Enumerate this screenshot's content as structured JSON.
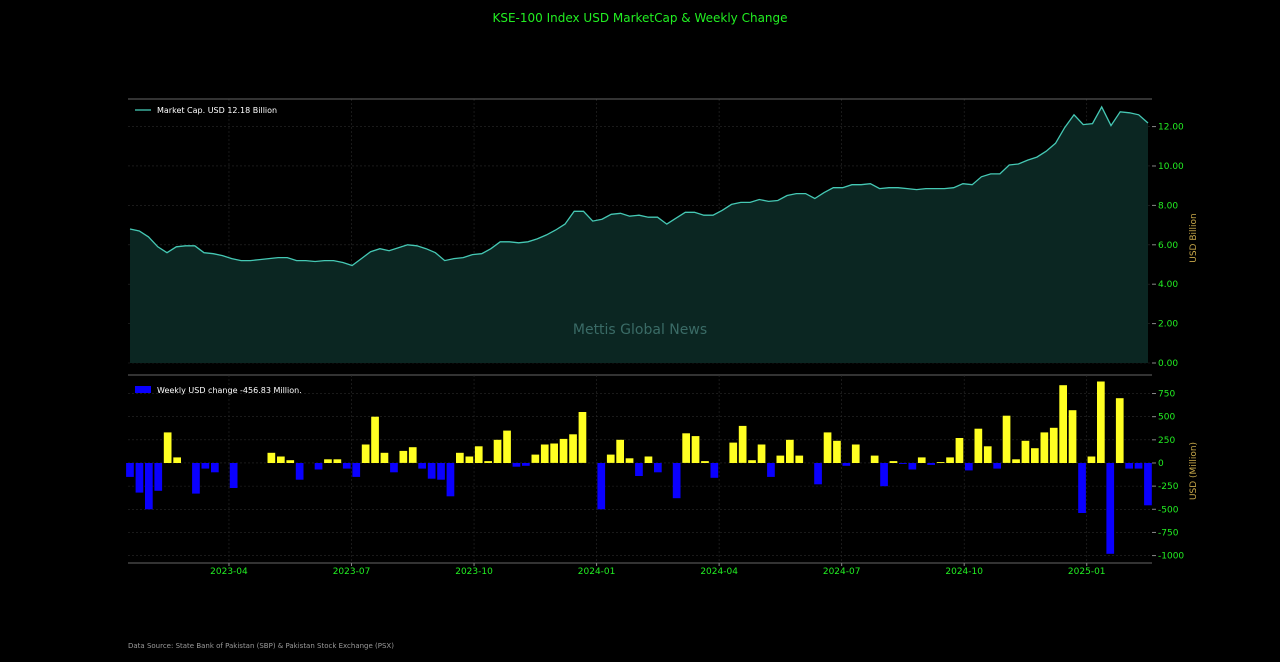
{
  "title": "KSE-100 Index USD MarketCap & Weekly Change",
  "watermark": "Mettis Global News",
  "source": "Data Source: State Bank of Pakistan (SBP) & Pakistan Stock Exchange (PSX)",
  "colors": {
    "line": "#45c8b4",
    "fill": "#0b2622",
    "positive": "#ffff22",
    "negative": "#0a00ff",
    "tick": "#22ee22",
    "axis_label": "#c8a84a",
    "grid": "#2a2a2a"
  },
  "chart_data": [
    {
      "type": "area",
      "legend": "Market Cap. USD 12.18 Billion",
      "ylabel": "USD Billion",
      "ylim": [
        0,
        13.4
      ],
      "yticks": [
        "0.00",
        "2.00",
        "4.00",
        "6.00",
        "8.00",
        "10.00",
        "12.00"
      ],
      "ytick_values": [
        0,
        2,
        4,
        6,
        8,
        10,
        12
      ],
      "grid": true,
      "legend_position": "top-left",
      "values": [
        6.8,
        6.7,
        6.4,
        5.9,
        5.6,
        5.9,
        5.95,
        5.95,
        5.6,
        5.55,
        5.45,
        5.3,
        5.2,
        5.2,
        5.25,
        5.3,
        5.35,
        5.35,
        5.2,
        5.2,
        5.15,
        5.2,
        5.2,
        5.1,
        4.95,
        5.3,
        5.65,
        5.8,
        5.7,
        5.85,
        6.0,
        5.95,
        5.8,
        5.6,
        5.2,
        5.3,
        5.35,
        5.5,
        5.55,
        5.8,
        6.15,
        6.15,
        6.1,
        6.15,
        6.3,
        6.5,
        6.75,
        7.05,
        7.7,
        7.7,
        7.2,
        7.3,
        7.55,
        7.6,
        7.45,
        7.5,
        7.4,
        7.4,
        7.05,
        7.35,
        7.65,
        7.65,
        7.5,
        7.5,
        7.75,
        8.05,
        8.15,
        8.15,
        8.3,
        8.2,
        8.25,
        8.5,
        8.6,
        8.6,
        8.35,
        8.65,
        8.9,
        8.9,
        9.05,
        9.05,
        9.1,
        8.85,
        8.9,
        8.9,
        8.85,
        8.8,
        8.85,
        8.85,
        8.85,
        8.9,
        9.1,
        9.05,
        9.45,
        9.6,
        9.6,
        10.05,
        10.1,
        10.3,
        10.45,
        10.75,
        11.15,
        11.95,
        12.6,
        12.1,
        12.15,
        13.0,
        12.05,
        12.75,
        12.7,
        12.6,
        12.18
      ]
    },
    {
      "type": "bar",
      "legend": "Weekly USD change -456.83 Million.",
      "ylabel": "USD (Million)",
      "ylim": [
        -1080,
        950
      ],
      "yticks": [
        "-1000",
        "-750",
        "-500",
        "-250",
        "0",
        "250",
        "500",
        "750"
      ],
      "ytick_values": [
        -1000,
        -750,
        -500,
        -250,
        0,
        250,
        500,
        750
      ],
      "grid": true,
      "legend_position": "top-left",
      "values": [
        -150,
        -320,
        -500,
        -300,
        330,
        60,
        0,
        -330,
        -60,
        -100,
        0,
        -270,
        0,
        0,
        0,
        110,
        70,
        30,
        -180,
        0,
        -70,
        40,
        40,
        -60,
        -150,
        200,
        500,
        110,
        -100,
        130,
        170,
        -60,
        -170,
        -180,
        -360,
        110,
        70,
        180,
        20,
        250,
        350,
        -40,
        -30,
        90,
        200,
        210,
        260,
        310,
        550,
        0,
        -500,
        90,
        250,
        50,
        -140,
        70,
        -100,
        0,
        -380,
        320,
        290,
        20,
        -160,
        0,
        220,
        400,
        30,
        200,
        -150,
        80,
        250,
        80,
        0,
        -230,
        330,
        240,
        -30,
        200,
        0,
        80,
        -250,
        20,
        -10,
        -70,
        60,
        -20,
        10,
        60,
        270,
        -80,
        370,
        180,
        -60,
        510,
        40,
        240,
        160,
        330,
        380,
        840,
        570,
        -540,
        70,
        880,
        -980,
        700,
        -60,
        -60,
        -457
      ],
      "x_ticks": [
        "2023-04",
        "2023-07",
        "2023-10",
        "2024-01",
        "2024-04",
        "2024-07",
        "2024-10",
        "2025-01"
      ],
      "x_tick_positions": [
        10.5,
        23.5,
        36.5,
        49.5,
        62.5,
        75.5,
        88.5,
        101.5
      ]
    }
  ]
}
